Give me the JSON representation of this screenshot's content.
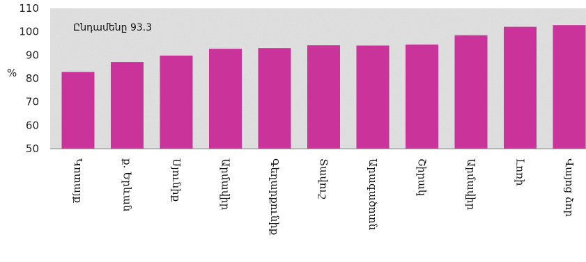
{
  "chart_data": {
    "type": "bar",
    "title": "",
    "xlabel": "",
    "ylabel": "%",
    "ylim": [
      50,
      110
    ],
    "yticks": [
      50,
      60,
      70,
      80,
      90,
      100,
      110
    ],
    "grid": false,
    "legend": "none",
    "annotation": "Ընդամենը 93.3",
    "categories": [
      "Կոտայք",
      "ք. Երևան",
      "Սյունիք",
      "Արմավիր",
      "Գեղարքունիք",
      "Տավուշ",
      "Արագածոտն",
      "Շիրակ",
      "Արմավիր",
      "Լոռի",
      "Վայոց ձոր"
    ],
    "values": [
      82.8,
      87.1,
      89.8,
      92.7,
      93.0,
      94.2,
      94.1,
      94.5,
      98.5,
      102.1,
      102.8
    ],
    "colors": {
      "bar": "#c9339a",
      "plot_bg": "#e6e6e6",
      "axis": "#888888"
    }
  }
}
